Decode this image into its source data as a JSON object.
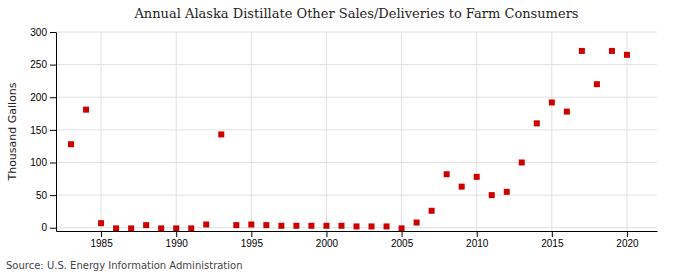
{
  "chart_data": {
    "type": "scatter",
    "title": "Annual Alaska Distillate Other Sales/Deliveries to Farm Consumers",
    "ylabel": "Thousand Gallons",
    "annotations": [
      "Source: U.S. Energy Information Administration"
    ],
    "x": [
      1983,
      1984,
      1985,
      1986,
      1987,
      1988,
      1989,
      1990,
      1991,
      1992,
      1993,
      1994,
      1995,
      1996,
      1997,
      1998,
      1999,
      2000,
      2001,
      2002,
      2003,
      2004,
      2005,
      2006,
      2007,
      2008,
      2009,
      2010,
      2011,
      2012,
      2013,
      2014,
      2015,
      2016,
      2017,
      2018,
      2019,
      2020
    ],
    "values": [
      128,
      181,
      7,
      -1,
      -1,
      4,
      -1,
      -1,
      -1,
      5,
      143,
      4,
      5,
      4,
      3,
      3,
      3,
      3,
      3,
      2,
      2,
      2,
      -1,
      8,
      26,
      82,
      63,
      78,
      50,
      55,
      100,
      160,
      192,
      178,
      271,
      220,
      271,
      265
    ],
    "color": "#cc0000",
    "marker": "square",
    "xlim": [
      1982,
      2022
    ],
    "ylim": [
      -5,
      300
    ],
    "xticks": [
      1985,
      1990,
      1995,
      2000,
      2005,
      2010,
      2015,
      2020
    ],
    "yticks": [
      0,
      50,
      100,
      150,
      200,
      250,
      300
    ],
    "grid": true
  }
}
